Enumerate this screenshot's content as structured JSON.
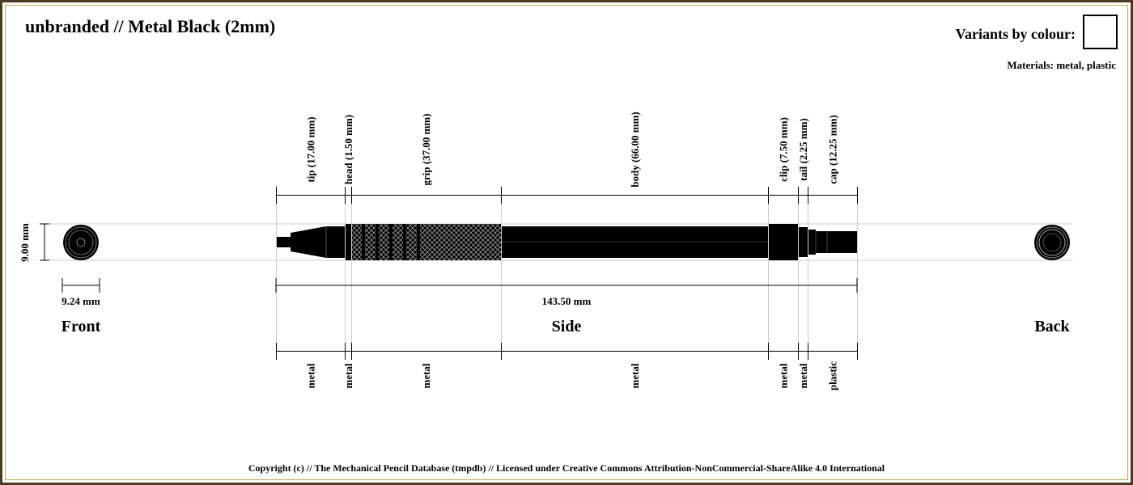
{
  "title": "unbranded // Metal Black (2mm)",
  "variants_label": "Variants by colour:",
  "variant_swatch_color": "#ffffff",
  "materials_text": "Materials: metal, plastic",
  "views": {
    "front": "Front",
    "side": "Side",
    "back": "Back"
  },
  "dimensions": {
    "height": "9.00 mm",
    "width": "9.24 mm",
    "length": "143.50 mm"
  },
  "segments": [
    {
      "label": "tip (17.00 mm)",
      "material": "metal",
      "length_mm": 17.0
    },
    {
      "label": "head (1.50 mm)",
      "material": "metal",
      "length_mm": 1.5
    },
    {
      "label": "grip (37.00 mm)",
      "material": "metal",
      "length_mm": 37.0
    },
    {
      "label": "body (66.00 mm)",
      "material": "metal",
      "length_mm": 66.0
    },
    {
      "label": "clip (7.50 mm)",
      "material": "metal",
      "length_mm": 7.5
    },
    {
      "label": "tail (2.25 mm)",
      "material": "metal",
      "length_mm": 2.25
    },
    {
      "label": "cap (12.25 mm)",
      "material": "plastic",
      "length_mm": 12.25
    }
  ],
  "colors": {
    "pencil": "#000000",
    "guide": "#cccccc",
    "frame": "#4a3a22"
  },
  "footer": "Copyright (c) // The Mechanical Pencil Database (tmpdb) // Licensed under Creative Commons Attribution-NonCommercial-ShareAlike 4.0 International"
}
